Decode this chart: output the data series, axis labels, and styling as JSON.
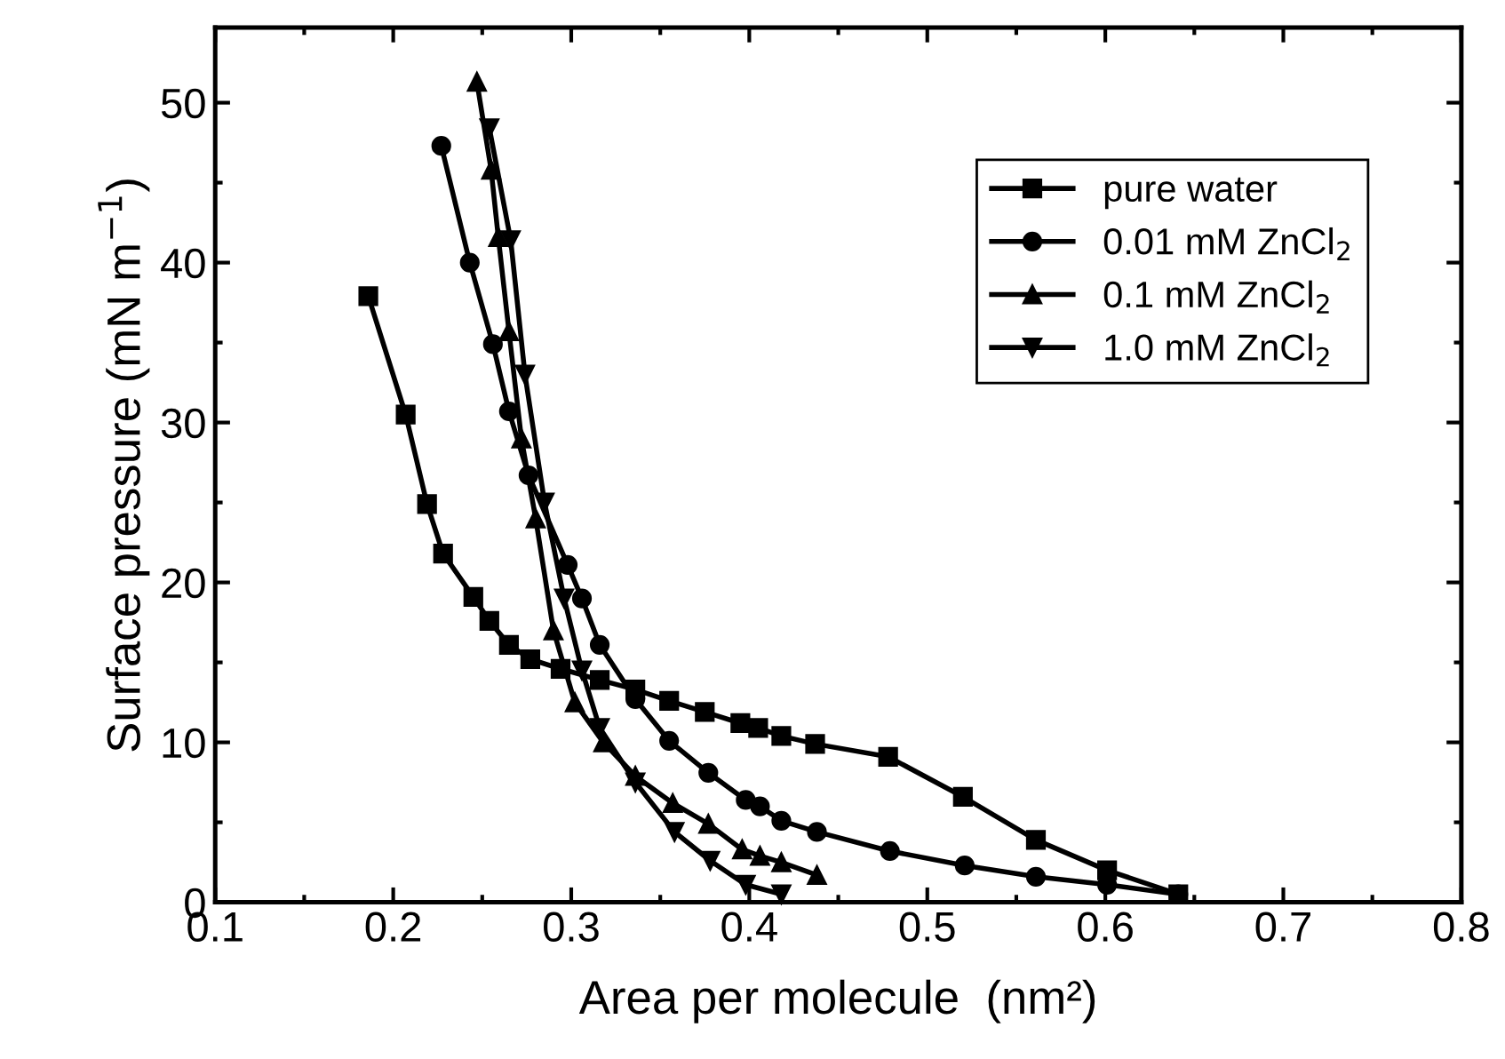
{
  "chart_data": {
    "type": "line",
    "xlabel": "Area per molecule  (nm²)",
    "ylabel": "Surface pressure (mN m$^{−1}$)",
    "xlim": [
      0.1,
      0.8
    ],
    "ylim": [
      0,
      54.7
    ],
    "xticks": [
      0.1,
      0.2,
      0.3,
      0.4,
      0.5,
      0.6,
      0.7,
      0.8
    ],
    "yticks": [
      0,
      10,
      20,
      30,
      40,
      50
    ],
    "grid": false,
    "legend": "top right",
    "line_style": "solid",
    "series": [
      {
        "name": "pure water",
        "color": "#000000",
        "marker": "square",
        "x": [
          0.186,
          0.207,
          0.219,
          0.228,
          0.245,
          0.254,
          0.265,
          0.277,
          0.294,
          0.316,
          0.336,
          0.355,
          0.375,
          0.395,
          0.405,
          0.418,
          0.437,
          0.478,
          0.52,
          0.561,
          0.601,
          0.641
        ],
        "values": [
          37.9,
          30.5,
          24.9,
          21.8,
          19.1,
          17.6,
          16.1,
          15.2,
          14.6,
          13.9,
          13.3,
          12.6,
          11.9,
          11.2,
          10.9,
          10.4,
          9.9,
          9.1,
          6.6,
          3.9,
          2.0,
          0.5
        ]
      },
      {
        "name": "0.01 mM ZnCl$_{2}$",
        "color": "#000000",
        "marker": "circle",
        "x": [
          0.227,
          0.243,
          0.256,
          0.265,
          0.276,
          0.298,
          0.306,
          0.316,
          0.336,
          0.355,
          0.377,
          0.398,
          0.406,
          0.418,
          0.438,
          0.479,
          0.521,
          0.561,
          0.601,
          0.641
        ],
        "values": [
          47.3,
          40.0,
          34.9,
          30.7,
          26.7,
          21.1,
          19.0,
          16.1,
          12.7,
          10.1,
          8.1,
          6.4,
          6.0,
          5.1,
          4.4,
          3.2,
          2.3,
          1.6,
          1.1,
          0.5
        ]
      },
      {
        "name": "0.1 mM ZnCl$_{2}$",
        "color": "#000000",
        "marker": "triangle",
        "x": [
          0.247,
          0.255,
          0.259,
          0.265,
          0.272,
          0.28,
          0.29,
          0.302,
          0.318,
          0.336,
          0.357,
          0.377,
          0.396,
          0.406,
          0.418,
          0.438
        ],
        "values": [
          51.3,
          45.8,
          41.6,
          35.7,
          29.0,
          24.0,
          17.0,
          12.5,
          10.0,
          7.9,
          6.2,
          4.9,
          3.3,
          2.9,
          2.5,
          1.7
        ]
      },
      {
        "name": "1.0 mM ZnCl$_{2}$",
        "color": "#000000",
        "marker": "triangle_down",
        "x": [
          0.254,
          0.266,
          0.274,
          0.285,
          0.296,
          0.306,
          0.316,
          0.336,
          0.358,
          0.378,
          0.398,
          0.418
        ],
        "values": [
          48.4,
          41.4,
          33.0,
          25.0,
          19.0,
          14.5,
          10.9,
          7.5,
          4.4,
          2.6,
          1.1,
          0.5
        ]
      }
    ]
  }
}
